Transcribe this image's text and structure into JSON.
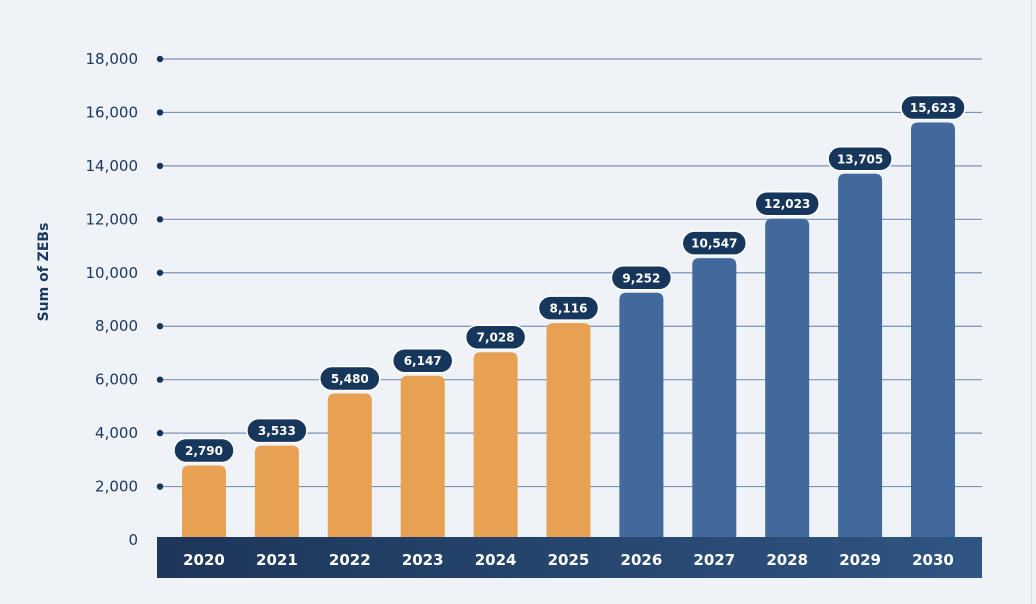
{
  "chart_data": {
    "type": "bar",
    "title": "",
    "xlabel": "",
    "ylabel": "Sum of ZEBs",
    "ylim": [
      0,
      18000
    ],
    "yticks": [
      0,
      2000,
      4000,
      6000,
      8000,
      10000,
      12000,
      14000,
      16000,
      18000
    ],
    "ytick_labels": [
      "0",
      "2,000",
      "4,000",
      "6,000",
      "8,000",
      "10,000",
      "12,000",
      "14,000",
      "16,000",
      "18,000"
    ],
    "grid": true,
    "categories": [
      "2020",
      "2021",
      "2022",
      "2023",
      "2024",
      "2025",
      "2026",
      "2027",
      "2028",
      "2029",
      "2030"
    ],
    "values": [
      2790,
      3533,
      5480,
      6147,
      7028,
      8116,
      9252,
      10547,
      12023,
      13705,
      15623
    ],
    "value_labels": [
      "2,790",
      "3,533",
      "5,480",
      "6,147",
      "7,028",
      "8,116",
      "9,252",
      "10,547",
      "12,023",
      "13,705",
      "15,623"
    ],
    "bar_colors": [
      "#e8a152",
      "#e8a152",
      "#e8a152",
      "#e8a152",
      "#e8a152",
      "#e8a152",
      "#42699b",
      "#42699b",
      "#42699b",
      "#42699b",
      "#42699b"
    ],
    "colors": {
      "historical": "#e8a152",
      "projected": "#42699b",
      "label_pill": "#17365c",
      "axis_text": "#1c3a60",
      "grid": "#7c93b0"
    }
  }
}
